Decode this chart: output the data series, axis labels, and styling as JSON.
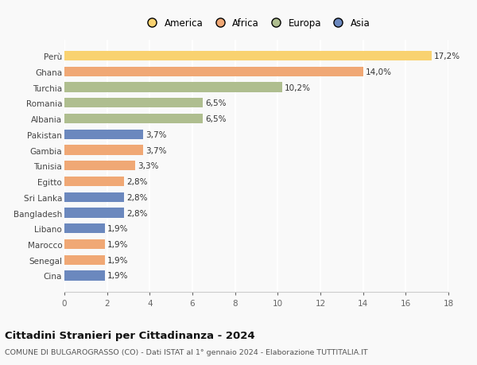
{
  "categories": [
    "Perù",
    "Ghana",
    "Turchia",
    "Romania",
    "Albania",
    "Pakistan",
    "Gambia",
    "Tunisia",
    "Egitto",
    "Sri Lanka",
    "Bangladesh",
    "Libano",
    "Marocco",
    "Senegal",
    "Cina"
  ],
  "values": [
    17.2,
    14.0,
    10.2,
    6.5,
    6.5,
    3.7,
    3.7,
    3.3,
    2.8,
    2.8,
    2.8,
    1.9,
    1.9,
    1.9,
    1.9
  ],
  "labels": [
    "17,2%",
    "14,0%",
    "10,2%",
    "6,5%",
    "6,5%",
    "3,7%",
    "3,7%",
    "3,3%",
    "2,8%",
    "2,8%",
    "2,8%",
    "1,9%",
    "1,9%",
    "1,9%",
    "1,9%"
  ],
  "colors": [
    "#F9D270",
    "#F0A875",
    "#AFBE8F",
    "#AFBE8F",
    "#AFBE8F",
    "#6B88BE",
    "#F0A875",
    "#F0A875",
    "#F0A875",
    "#6B88BE",
    "#6B88BE",
    "#6B88BE",
    "#F0A875",
    "#F0A875",
    "#6B88BE"
  ],
  "legend_labels": [
    "America",
    "Africa",
    "Europa",
    "Asia"
  ],
  "legend_colors": [
    "#F9D270",
    "#F0A875",
    "#AFBE8F",
    "#6B88BE"
  ],
  "title": "Cittadini Stranieri per Cittadinanza - 2024",
  "subtitle": "COMUNE DI BULGAROGRASSO (CO) - Dati ISTAT al 1° gennaio 2024 - Elaborazione TUTTITALIA.IT",
  "xlim": [
    0,
    18
  ],
  "xticks": [
    0,
    2,
    4,
    6,
    8,
    10,
    12,
    14,
    16,
    18
  ],
  "background_color": "#f9f9f9",
  "grid_color": "#ffffff",
  "bar_label_fontsize": 7.5,
  "ytick_fontsize": 7.5,
  "xtick_fontsize": 7.5,
  "legend_fontsize": 8.5,
  "title_fontsize": 9.5,
  "subtitle_fontsize": 6.8,
  "bar_height": 0.62
}
